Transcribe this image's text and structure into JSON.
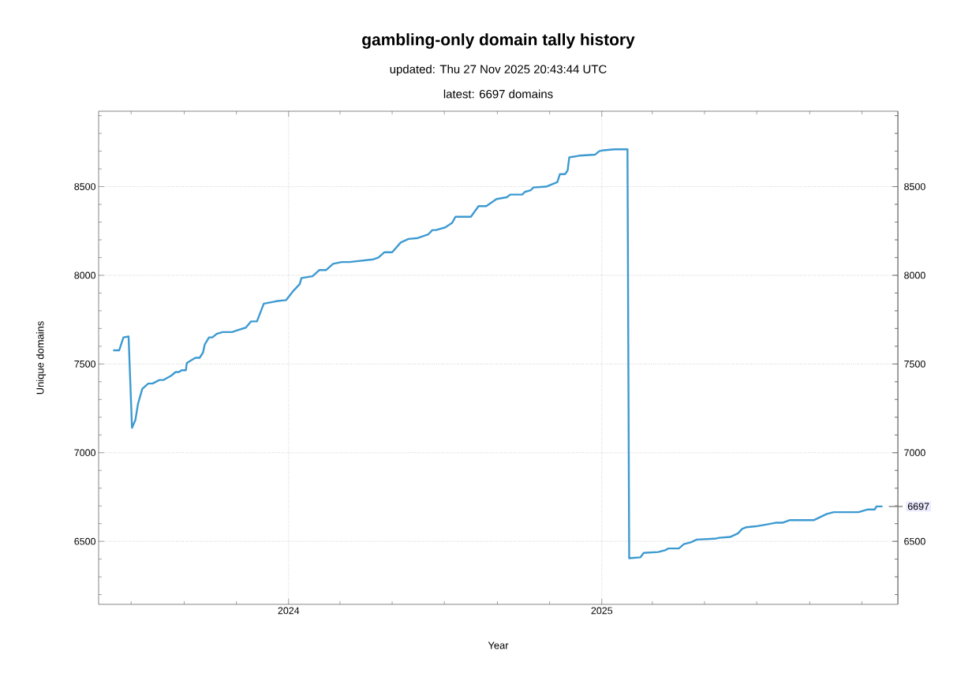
{
  "chart_data": {
    "type": "line",
    "title": "gambling-only domain tally history",
    "subtitle": "updated: Thu 27 Nov 2025 20:43:44 UTC",
    "annotations": [
      "latest: 6697 domains",
      {
        "text": "6697",
        "x": "2025-11-25",
        "y": 6697
      }
    ],
    "xlabel": "Year",
    "ylabel": "Unique domains",
    "x": [
      "2023-06-10",
      "2023-06-17",
      "2023-06-22",
      "2023-06-28",
      "2023-07-02",
      "2023-07-06",
      "2023-07-09",
      "2023-07-14",
      "2023-07-21",
      "2023-07-26",
      "2023-08-03",
      "2023-08-08",
      "2023-08-17",
      "2023-08-22",
      "2023-08-26",
      "2023-08-29",
      "2023-09-03",
      "2023-09-04",
      "2023-09-09",
      "2023-09-14",
      "2023-09-19",
      "2023-09-23",
      "2023-09-25",
      "2023-09-30",
      "2023-10-04",
      "2023-10-09",
      "2023-10-16",
      "2023-10-27",
      "2023-11-02",
      "2023-11-12",
      "2023-11-18",
      "2023-11-25",
      "2023-12-03",
      "2023-12-14",
      "2023-12-19",
      "2023-12-29",
      "2024-01-07",
      "2024-01-14",
      "2024-01-16",
      "2024-01-29",
      "2024-02-06",
      "2024-02-14",
      "2024-02-22",
      "2024-03-03",
      "2024-03-12",
      "2024-04-09",
      "2024-04-15",
      "2024-04-22",
      "2024-05-01",
      "2024-05-11",
      "2024-05-20",
      "2024-05-31",
      "2024-06-12",
      "2024-06-17",
      "2024-06-21",
      "2024-07-02",
      "2024-07-10",
      "2024-07-14",
      "2024-08-01",
      "2024-08-10",
      "2024-08-19",
      "2024-08-28",
      "2024-08-31",
      "2024-09-12",
      "2024-09-16",
      "2024-09-30",
      "2024-10-03",
      "2024-10-10",
      "2024-10-13",
      "2024-10-28",
      "2024-11-02",
      "2024-11-10",
      "2024-11-13",
      "2024-11-19",
      "2024-11-22",
      "2024-11-24",
      "2024-12-01",
      "2024-12-06",
      "2024-12-24",
      "2024-12-29",
      "2025-01-03",
      "2025-01-16",
      "2025-01-31",
      "2025-02-02",
      "2025-02-15",
      "2025-02-19",
      "2025-03-08",
      "2025-03-16",
      "2025-03-20",
      "2025-04-01",
      "2025-04-07",
      "2025-04-15",
      "2025-04-22",
      "2025-05-13",
      "2025-05-18",
      "2025-05-31",
      "2025-06-09",
      "2025-06-14",
      "2025-06-19",
      "2025-06-30",
      "2025-07-12",
      "2025-07-23",
      "2025-07-31",
      "2025-08-09",
      "2025-09-06",
      "2025-09-21",
      "2025-09-29",
      "2025-10-28",
      "2025-11-08",
      "2025-11-16",
      "2025-11-18",
      "2025-11-25"
    ],
    "series": [
      {
        "color": "#3d9ad1",
        "values": [
          7577,
          7577,
          7650,
          7655,
          7140,
          7185,
          7275,
          7360,
          7390,
          7390,
          7410,
          7410,
          7435,
          7455,
          7455,
          7465,
          7465,
          7505,
          7520,
          7535,
          7535,
          7565,
          7610,
          7650,
          7650,
          7670,
          7680,
          7680,
          7690,
          7705,
          7740,
          7740,
          7840,
          7850,
          7855,
          7860,
          7915,
          7950,
          7985,
          7995,
          8030,
          8030,
          8065,
          8075,
          8075,
          8090,
          8100,
          8130,
          8130,
          8185,
          8205,
          8210,
          8230,
          8255,
          8255,
          8270,
          8295,
          8330,
          8330,
          8390,
          8390,
          8420,
          8430,
          8440,
          8455,
          8455,
          8470,
          8480,
          8495,
          8500,
          8510,
          8525,
          8570,
          8570,
          8590,
          8665,
          8670,
          8675,
          8680,
          8700,
          8705,
          8710,
          8710,
          6405,
          6410,
          6435,
          6440,
          6450,
          6460,
          6460,
          6485,
          6495,
          6510,
          6515,
          6520,
          6525,
          6545,
          6570,
          6580,
          6585,
          6595,
          6605,
          6605,
          6620,
          6620,
          6655,
          6665,
          6665,
          6680,
          6680,
          6697,
          6697
        ]
      }
    ],
    "xlim": [
      "2023-05-24",
      "2025-12-13"
    ],
    "xticks": [
      {
        "value": "2023-07-01",
        "label": null
      },
      {
        "value": "2023-09-01",
        "label": null
      },
      {
        "value": "2023-11-01",
        "label": null
      },
      {
        "value": "2024-01-01",
        "label": "2024"
      },
      {
        "value": "2024-03-01",
        "label": null
      },
      {
        "value": "2024-05-01",
        "label": null
      },
      {
        "value": "2024-07-01",
        "label": null
      },
      {
        "value": "2024-09-01",
        "label": null
      },
      {
        "value": "2024-11-01",
        "label": null
      },
      {
        "value": "2025-01-01",
        "label": "2025"
      },
      {
        "value": "2025-03-01",
        "label": null
      },
      {
        "value": "2025-05-01",
        "label": null
      },
      {
        "value": "2025-07-01",
        "label": null
      },
      {
        "value": "2025-09-01",
        "label": null
      },
      {
        "value": "2025-11-01",
        "label": null
      }
    ],
    "ylim": [
      6145,
      8925
    ],
    "yticks": [
      {
        "value": 6200,
        "label": null
      },
      {
        "value": 6300,
        "label": null
      },
      {
        "value": 6400,
        "label": null
      },
      6500,
      {
        "value": 6600,
        "label": null
      },
      {
        "value": 6700,
        "label": null
      },
      {
        "value": 6800,
        "label": null
      },
      {
        "value": 6900,
        "label": null
      },
      7000,
      {
        "value": 7100,
        "label": null
      },
      {
        "value": 7200,
        "label": null
      },
      {
        "value": 7300,
        "label": null
      },
      {
        "value": 7400,
        "label": null
      },
      7500,
      {
        "value": 7600,
        "label": null
      },
      {
        "value": 7700,
        "label": null
      },
      {
        "value": 7800,
        "label": null
      },
      {
        "value": 7900,
        "label": null
      },
      8000,
      {
        "value": 8100,
        "label": null
      },
      {
        "value": 8200,
        "label": null
      },
      {
        "value": 8300,
        "label": null
      },
      {
        "value": 8400,
        "label": null
      },
      8500,
      {
        "value": 8600,
        "label": null
      },
      {
        "value": 8700,
        "label": null
      },
      {
        "value": 8800,
        "label": null
      },
      {
        "value": 8900,
        "label": null
      }
    ],
    "y2lim": [
      6145,
      8925
    ],
    "y2ticks": [
      {
        "value": 6200,
        "label": null
      },
      {
        "value": 6300,
        "label": null
      },
      {
        "value": 6400,
        "label": null
      },
      6500,
      {
        "value": 6600,
        "label": null
      },
      {
        "value": 6700,
        "label": null
      },
      {
        "value": 6800,
        "label": null
      },
      {
        "value": 6900,
        "label": null
      },
      7000,
      {
        "value": 7100,
        "label": null
      },
      {
        "value": 7200,
        "label": null
      },
      {
        "value": 7300,
        "label": null
      },
      {
        "value": 7400,
        "label": null
      },
      7500,
      {
        "value": 7600,
        "label": null
      },
      {
        "value": 7700,
        "label": null
      },
      {
        "value": 7800,
        "label": null
      },
      {
        "value": 7900,
        "label": null
      },
      8000,
      {
        "value": 8100,
        "label": null
      },
      {
        "value": 8200,
        "label": null
      },
      {
        "value": 8300,
        "label": null
      },
      {
        "value": 8400,
        "label": null
      },
      8500,
      {
        "value": 8600,
        "label": null
      },
      {
        "value": 8700,
        "label": null
      },
      {
        "value": 8800,
        "label": null
      },
      {
        "value": 8900,
        "label": null
      }
    ],
    "grid": true,
    "line_style": "solid"
  }
}
